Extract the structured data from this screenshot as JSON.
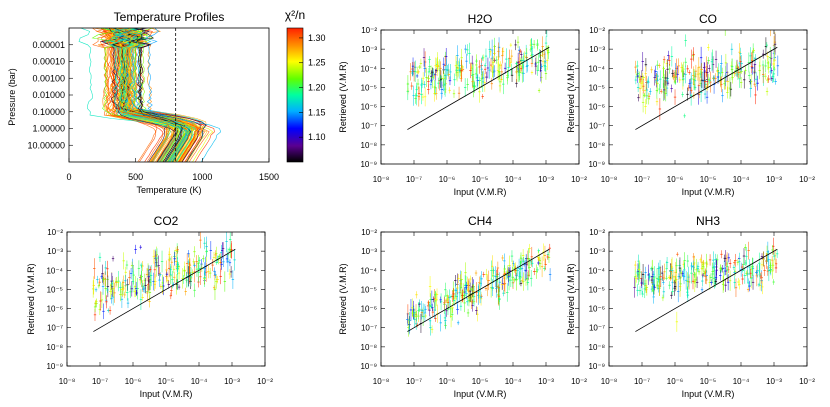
{
  "colors": {
    "axis": "#000000",
    "background": "#ffffff",
    "cmap": [
      "#000000",
      "#5a0090",
      "#0000ff",
      "#00b0ff",
      "#00ffa0",
      "#60ff00",
      "#ffff00",
      "#ff9000",
      "#ff2000"
    ]
  },
  "chart_data": [
    {
      "id": "temp",
      "type": "line",
      "title": "Temperature Profiles",
      "xlabel": "Temperature (K)",
      "ylabel": "Pressure (bar)",
      "xlim": [
        0,
        1500
      ],
      "ylim": [
        1e-06,
        100
      ],
      "yscale": "log",
      "yreversed": true,
      "xticks": [
        "0",
        "500",
        "1000",
        "1500"
      ],
      "yticks": [
        "0.00001",
        "0.00010",
        "0.00100",
        "0.01000",
        "0.10000",
        "1.00000",
        "10.00000"
      ],
      "vline_x": 800,
      "n_profiles": 120,
      "colorbar": {
        "label": "χ²/n",
        "range": [
          1.05,
          1.32
        ],
        "ticks": [
          "1.30",
          "1.25",
          "1.20",
          "1.15",
          "1.10"
        ]
      }
    },
    {
      "id": "h2o",
      "type": "scatter",
      "title": "H2O",
      "xlabel": "Input (V.M.R)",
      "ylabel": "Retrieved (V.M.R)",
      "xlim_exp": [
        -8,
        -2
      ],
      "ylim_exp": [
        -9,
        -2
      ],
      "xticks": [
        "10⁻⁸",
        "10⁻⁷",
        "10⁻⁶",
        "10⁻⁵",
        "10⁻⁴",
        "10⁻³",
        "10⁻²"
      ],
      "yticks": [
        "10⁻²",
        "10⁻³",
        "10⁻⁴",
        "10⁻⁵",
        "10⁻⁶",
        "10⁻⁷",
        "10⁻⁸",
        "10⁻⁹"
      ],
      "input_range_exp": [
        -7.2,
        -2.9
      ],
      "retrieved_trend_exp": [
        -4.7,
        -3.5
      ],
      "scatter_exp": 0.6,
      "one_to_one": {
        "x_exp": [
          -7.2,
          -2.9
        ]
      }
    },
    {
      "id": "co",
      "type": "scatter",
      "title": "CO",
      "xlabel": "Input (V.M.R)",
      "ylabel": "Retrieved (V.M.R)",
      "xlim_exp": [
        -8,
        -2
      ],
      "ylim_exp": [
        -9,
        -2
      ],
      "xticks": [
        "10⁻⁸",
        "10⁻⁷",
        "10⁻⁶",
        "10⁻⁵",
        "10⁻⁴",
        "10⁻³",
        "10⁻²"
      ],
      "yticks": [
        "10⁻²",
        "10⁻³",
        "10⁻⁴",
        "10⁻⁵",
        "10⁻⁶",
        "10⁻⁷",
        "10⁻⁸",
        "10⁻⁹"
      ],
      "input_range_exp": [
        -7.2,
        -2.9
      ],
      "retrieved_trend_exp": [
        -4.8,
        -3.8
      ],
      "scatter_exp": 0.6,
      "one_to_one": {
        "x_exp": [
          -7.2,
          -2.9
        ]
      }
    },
    {
      "id": "co2",
      "type": "scatter",
      "title": "CO2",
      "xlabel": "Input (V.M.R)",
      "ylabel": "Retrieved (V.M.R)",
      "xlim_exp": [
        -8,
        -2
      ],
      "ylim_exp": [
        -9,
        -2
      ],
      "xticks": [
        "10⁻⁸",
        "10⁻⁷",
        "10⁻⁶",
        "10⁻⁵",
        "10⁻⁴",
        "10⁻³",
        "10⁻²"
      ],
      "yticks": [
        "10⁻²",
        "10⁻³",
        "10⁻⁴",
        "10⁻⁵",
        "10⁻⁶",
        "10⁻⁷",
        "10⁻⁸",
        "10⁻⁹"
      ],
      "input_range_exp": [
        -7.2,
        -2.9
      ],
      "retrieved_trend_exp": [
        -5.0,
        -3.4
      ],
      "scatter_exp": 0.6,
      "one_to_one": {
        "x_exp": [
          -7.2,
          -2.9
        ]
      }
    },
    {
      "id": "ch4",
      "type": "scatter",
      "title": "CH4",
      "xlabel": "Input (V.M.R)",
      "ylabel": "Retrieved (V.M.R)",
      "xlim_exp": [
        -8,
        -2
      ],
      "ylim_exp": [
        -9,
        -2
      ],
      "xticks": [
        "10⁻⁸",
        "10⁻⁷",
        "10⁻⁶",
        "10⁻⁵",
        "10⁻⁴",
        "10⁻³",
        "10⁻²"
      ],
      "yticks": [
        "10⁻²",
        "10⁻³",
        "10⁻⁴",
        "10⁻⁵",
        "10⁻⁶",
        "10⁻⁷",
        "10⁻⁸",
        "10⁻⁹"
      ],
      "input_range_exp": [
        -7.2,
        -2.9
      ],
      "retrieved_trend_exp": [
        -6.6,
        -3.4
      ],
      "scatter_exp": 0.45,
      "one_to_one": {
        "x_exp": [
          -7.2,
          -2.9
        ]
      }
    },
    {
      "id": "nh3",
      "type": "scatter",
      "title": "NH3",
      "xlabel": "Input (V.M.R)",
      "ylabel": "Retrieved (V.M.R)",
      "xlim_exp": [
        -8,
        -2
      ],
      "ylim_exp": [
        -9,
        -2
      ],
      "xticks": [
        "10⁻⁸",
        "10⁻⁷",
        "10⁻⁶",
        "10⁻⁵",
        "10⁻⁴",
        "10⁻³",
        "10⁻²"
      ],
      "yticks": [
        "10⁻²",
        "10⁻³",
        "10⁻⁴",
        "10⁻⁵",
        "10⁻⁶",
        "10⁻⁷",
        "10⁻⁸",
        "10⁻⁹"
      ],
      "input_range_exp": [
        -7.2,
        -2.9
      ],
      "retrieved_trend_exp": [
        -4.5,
        -3.8
      ],
      "scatter_exp": 0.5,
      "one_to_one": {
        "x_exp": [
          -7.2,
          -2.9
        ]
      }
    }
  ]
}
